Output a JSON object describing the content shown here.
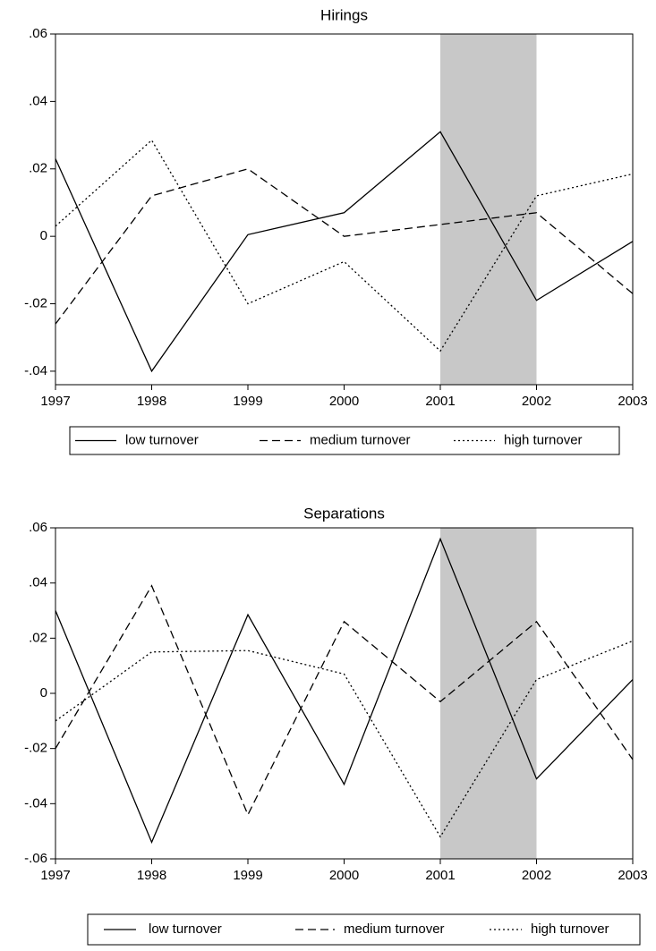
{
  "chart_data": [
    {
      "type": "line",
      "title": "Hirings",
      "x": [
        1997,
        1998,
        1999,
        2000,
        2001,
        2002,
        2003
      ],
      "xlim": [
        1997,
        2003
      ],
      "xticks": [
        1997,
        1998,
        1999,
        2000,
        2001,
        2002,
        2003
      ],
      "ylim": [
        -0.044,
        0.06
      ],
      "yticks": [
        {
          "value": -0.04,
          "label": "-.04"
        },
        {
          "value": -0.02,
          "label": "-.02"
        },
        0,
        {
          "value": 0.02,
          "label": ".02"
        },
        {
          "value": 0.04,
          "label": ".04"
        },
        {
          "value": 0.06,
          "label": ".06"
        }
      ],
      "shade": [
        2001,
        2002
      ],
      "shade_color": "#c8c8c8",
      "series": [
        {
          "name": "low turnover",
          "color": "#000000",
          "style": "solid",
          "values": [
            0.023,
            -0.04,
            0.0005,
            0.007,
            0.031,
            -0.019,
            -0.0015
          ]
        },
        {
          "name": "medium turnover",
          "color": "#000000",
          "style": "dashed",
          "values": [
            -0.026,
            0.012,
            0.02,
            0.0,
            0.0035,
            0.007,
            -0.017
          ]
        },
        {
          "name": "high turnover",
          "color": "#000000",
          "style": "dotted",
          "values": [
            0.003,
            0.0285,
            -0.02,
            -0.0075,
            -0.034,
            0.012,
            0.0185
          ]
        }
      ]
    },
    {
      "type": "line",
      "title": "Separations",
      "x": [
        1997,
        1998,
        1999,
        2000,
        2001,
        2002,
        2003
      ],
      "xlim": [
        1997,
        2003
      ],
      "xticks": [
        1997,
        1998,
        1999,
        2000,
        2001,
        2002,
        2003
      ],
      "ylim": [
        -0.06,
        0.06
      ],
      "yticks": [
        {
          "value": -0.06,
          "label": "-.06"
        },
        {
          "value": -0.04,
          "label": "-.04"
        },
        {
          "value": -0.02,
          "label": "-.02"
        },
        0,
        {
          "value": 0.02,
          "label": ".02"
        },
        {
          "value": 0.04,
          "label": ".04"
        },
        {
          "value": 0.06,
          "label": ".06"
        }
      ],
      "shade": [
        2001,
        2002
      ],
      "shade_color": "#c8c8c8",
      "series": [
        {
          "name": "low turnover",
          "color": "#000000",
          "style": "solid",
          "values": [
            0.03,
            -0.054,
            0.0285,
            -0.033,
            0.056,
            -0.031,
            0.005
          ]
        },
        {
          "name": "medium turnover",
          "color": "#000000",
          "style": "dashed",
          "values": [
            -0.02,
            0.039,
            -0.044,
            0.026,
            -0.003,
            0.026,
            -0.024
          ]
        },
        {
          "name": "high turnover",
          "color": "#000000",
          "style": "dotted",
          "values": [
            -0.01,
            0.015,
            0.0155,
            0.007,
            -0.052,
            0.005,
            0.019
          ]
        }
      ]
    }
  ]
}
